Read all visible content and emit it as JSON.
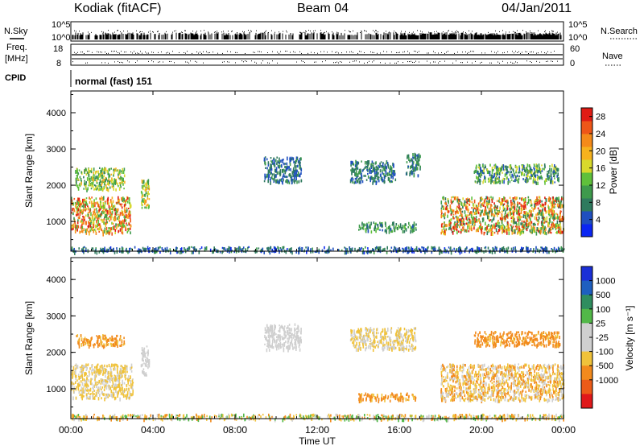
{
  "header": {
    "site": "Kodiak (fitACF)",
    "beam": "Beam 04",
    "date": "04/Jan/2011"
  },
  "top_panels": {
    "nsky_label": "N.Sky",
    "nsearch_label": "N.Search",
    "count_axis_ticks": [
      "10^5",
      "10^0"
    ],
    "freq_label": "Freq.",
    "freq_unit": "[MHz]",
    "freq_ticks": [
      "18",
      "8"
    ],
    "nave_label": "Nave",
    "nave_ticks": [
      "60",
      "0"
    ],
    "cpid_label": "CPID",
    "cpid_value": "normal (fast) 151"
  },
  "colors": {
    "power": [
      "#0b26f2",
      "#1f4fbf",
      "#2f7a5e",
      "#3e9a4c",
      "#5fc03b",
      "#d8d92c",
      "#f6b21e",
      "#f48a1a",
      "#ee5618",
      "#e01b14"
    ],
    "velocity": [
      "#1b2fd6",
      "#1e5fc0",
      "#2f8d5f",
      "#52b848",
      "#cfcfcf",
      "#cfcfcf",
      "#f0c23a",
      "#f28a1c",
      "#ec5b18",
      "#e0181a"
    ],
    "ground_scatter": "#c9c9c5"
  },
  "chart_data": [
    {
      "type": "heatmap",
      "panel": "power",
      "title": "",
      "xlabel": "Time UT",
      "ylabel": "Slant Range [km]",
      "x_ticks": [
        "00:00",
        "04:00",
        "08:00",
        "12:00",
        "16:00",
        "20:00",
        "00:00"
      ],
      "x_range_hours": [
        0,
        24
      ],
      "y_ticks": [
        1000,
        2000,
        3000,
        4000
      ],
      "y_range_km": [
        180,
        4600
      ],
      "colorbar_label": "Power [dB]",
      "colorbar_ticks": [
        4,
        8,
        12,
        16,
        20,
        24,
        28
      ],
      "colorbar_range": [
        0,
        30
      ],
      "regions": [
        {
          "t": [
            0.0,
            2.9
          ],
          "r": [
            700,
            1700
          ],
          "v": [
            10,
            30
          ]
        },
        {
          "t": [
            0.2,
            2.6
          ],
          "r": [
            1900,
            2500
          ],
          "v": [
            8,
            20
          ]
        },
        {
          "t": [
            3.4,
            3.8
          ],
          "r": [
            1400,
            2200
          ],
          "v": [
            10,
            22
          ]
        },
        {
          "t": [
            9.4,
            11.2
          ],
          "r": [
            2100,
            2800
          ],
          "v": [
            3,
            10
          ]
        },
        {
          "t": [
            13.6,
            15.8
          ],
          "r": [
            2100,
            2700
          ],
          "v": [
            3,
            12
          ]
        },
        {
          "t": [
            16.3,
            17.0
          ],
          "r": [
            2300,
            2900
          ],
          "v": [
            4,
            12
          ]
        },
        {
          "t": [
            14.0,
            16.8
          ],
          "r": [
            750,
            1000
          ],
          "v": [
            5,
            14
          ]
        },
        {
          "t": [
            18.0,
            24.0
          ],
          "r": [
            700,
            1700
          ],
          "v": [
            6,
            30
          ]
        },
        {
          "t": [
            19.6,
            23.8
          ],
          "r": [
            2100,
            2600
          ],
          "v": [
            4,
            18
          ]
        },
        {
          "t": [
            0.0,
            24.0
          ],
          "r": [
            180,
            320
          ],
          "v": [
            2,
            10
          ]
        }
      ]
    },
    {
      "type": "heatmap",
      "panel": "velocity",
      "title": "",
      "xlabel": "Time UT",
      "ylabel": "Slant Range [km]",
      "x_ticks": [
        "00:00",
        "04:00",
        "08:00",
        "12:00",
        "16:00",
        "20:00",
        "00:00"
      ],
      "x_range_hours": [
        0,
        24
      ],
      "y_ticks": [
        1000,
        2000,
        3000,
        4000
      ],
      "y_range_km": [
        180,
        4600
      ],
      "colorbar_label": "Velocity [m s⁻¹]",
      "colorbar_ticks": [
        "1000",
        "500",
        "100",
        "25",
        "-25",
        "-100",
        "-500",
        "-1000"
      ],
      "regions": [
        {
          "t": [
            0.0,
            3.0
          ],
          "r": [
            750,
            1700
          ],
          "v": [
            -100,
            25
          ]
        },
        {
          "t": [
            0.2,
            2.6
          ],
          "r": [
            2200,
            2500
          ],
          "v": [
            -300,
            -25
          ]
        },
        {
          "t": [
            3.4,
            3.8
          ],
          "r": [
            1400,
            2200
          ],
          "v": [
            -25,
            25
          ]
        },
        {
          "t": [
            9.4,
            11.2
          ],
          "r": [
            2100,
            2800
          ],
          "v": [
            -25,
            25
          ]
        },
        {
          "t": [
            13.6,
            16.8
          ],
          "r": [
            2100,
            2700
          ],
          "v": [
            -100,
            25
          ]
        },
        {
          "t": [
            14.0,
            16.8
          ],
          "r": [
            700,
            900
          ],
          "v": [
            -300,
            -50
          ]
        },
        {
          "t": [
            18.0,
            24.0
          ],
          "r": [
            700,
            1700
          ],
          "v": [
            -150,
            25
          ]
        },
        {
          "t": [
            19.6,
            23.8
          ],
          "r": [
            2200,
            2600
          ],
          "v": [
            -300,
            -50
          ]
        },
        {
          "t": [
            0.0,
            24.0
          ],
          "r": [
            180,
            320
          ],
          "v": [
            -150,
            100
          ]
        }
      ]
    }
  ]
}
